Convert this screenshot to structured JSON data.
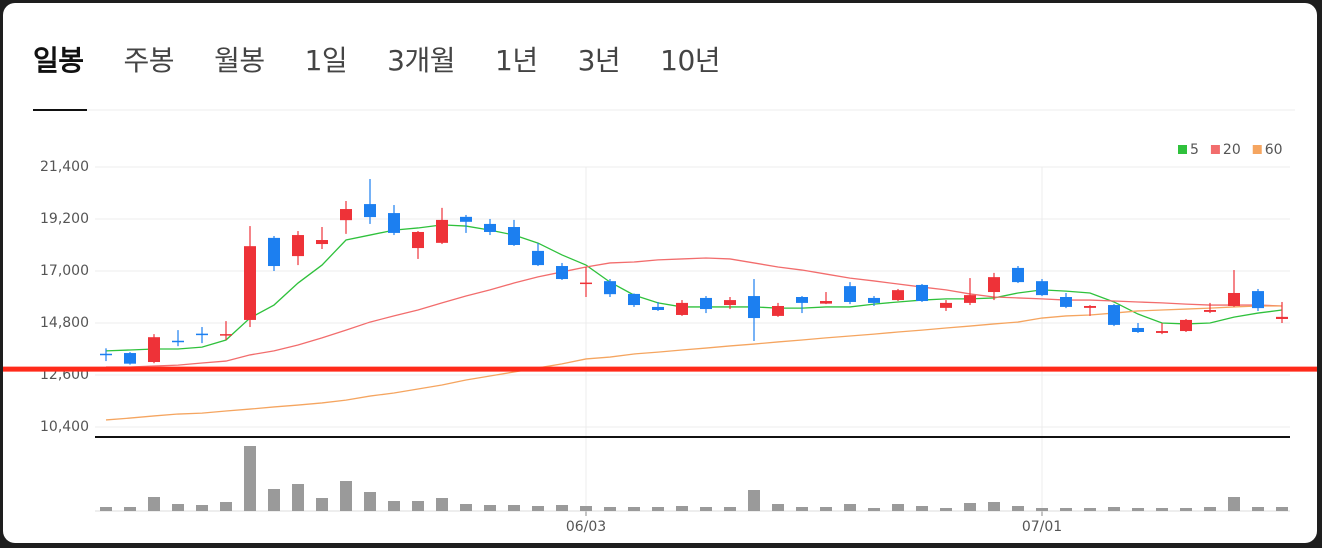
{
  "tabs": [
    "일봉",
    "주봉",
    "월봉",
    "1일",
    "3개월",
    "1년",
    "3년",
    "10년"
  ],
  "chart_data": {
    "type": "candlestick",
    "categories": [
      null,
      null,
      null,
      null,
      null,
      null,
      null,
      null,
      null,
      null,
      null,
      null,
      null,
      null,
      null,
      null,
      null,
      null,
      null,
      null,
      "06/03",
      null,
      null,
      null,
      null,
      null,
      null,
      null,
      null,
      null,
      null,
      null,
      null,
      null,
      null,
      null,
      null,
      null,
      null,
      "07/01",
      null,
      null,
      null,
      null,
      null,
      null,
      null,
      null,
      null,
      null
    ],
    "open": [
      13500,
      13530,
      13150,
      14050,
      14350,
      14280,
      14930,
      18400,
      17630,
      18140,
      19150,
      19830,
      19450,
      17970,
      18190,
      19290,
      18990,
      18860,
      17850,
      17210,
      16470,
      16570,
      16030,
      15480,
      15140,
      15860,
      15560,
      15940,
      15100,
      15900,
      15620,
      16360,
      15860,
      15770,
      16410,
      15440,
      15650,
      16110,
      17130,
      16570,
      15900,
      15440,
      15560,
      14590,
      14380,
      14460,
      15270,
      15520,
      16150,
      14970
    ],
    "high": [
      13730,
      13570,
      14330,
      14500,
      14630,
      14880,
      18900,
      18480,
      18690,
      18860,
      19960,
      20890,
      19790,
      18690,
      19670,
      19370,
      19200,
      19160,
      18180,
      17340,
      17170,
      16660,
      16050,
      15690,
      15770,
      15940,
      15900,
      16660,
      15650,
      15940,
      16110,
      16530,
      15940,
      16240,
      16450,
      15770,
      16700,
      16920,
      17210,
      16660,
      16070,
      15560,
      15600,
      14800,
      14800,
      14970,
      15650,
      17040,
      16240,
      15690
    ],
    "low": [
      13190,
      13040,
      13100,
      13820,
      13950,
      14080,
      14630,
      17000,
      17250,
      17930,
      18570,
      18990,
      18520,
      17510,
      18140,
      18610,
      18520,
      18060,
      17210,
      16620,
      15900,
      15900,
      15480,
      15310,
      15100,
      15220,
      15390,
      14040,
      15060,
      15220,
      15600,
      15600,
      15520,
      15730,
      15690,
      15310,
      15560,
      15770,
      16490,
      15940,
      15430,
      15100,
      14670,
      14380,
      14330,
      14420,
      15220,
      15480,
      15310,
      14800
    ],
    "close": [
      13450,
      13080,
      14200,
      14000,
      14300,
      14330,
      18050,
      17210,
      18520,
      18310,
      19620,
      19280,
      18610,
      18650,
      19160,
      19080,
      18650,
      18100,
      17250,
      16660,
      16510,
      16020,
      15560,
      15350,
      15650,
      15390,
      15770,
      15010,
      15520,
      15650,
      15730,
      15690,
      15650,
      16190,
      15730,
      15650,
      15980,
      16740,
      16530,
      15980,
      15480,
      15520,
      14720,
      14420,
      14460,
      14930,
      15350,
      16070,
      15430,
      15060
    ],
    "up_color": "#ee3238",
    "down_color": "#1c7ff0",
    "series": [
      {
        "name": "5",
        "color": "#2fc13c",
        "values": [
          13620,
          13660,
          13700,
          13700,
          13780,
          14080,
          15010,
          15560,
          16490,
          17250,
          18310,
          18520,
          18730,
          18820,
          18950,
          18900,
          18730,
          18520,
          18180,
          17680,
          17250,
          16530,
          15980,
          15650,
          15480,
          15480,
          15480,
          15480,
          15430,
          15430,
          15480,
          15480,
          15600,
          15690,
          15770,
          15820,
          15820,
          15860,
          16070,
          16200,
          16150,
          16070,
          15690,
          15180,
          14800,
          14760,
          14800,
          15050,
          15220,
          15350
        ]
      },
      {
        "name": "20",
        "color": "#f26d6d",
        "values": [
          12940,
          12940,
          12980,
          13020,
          13110,
          13190,
          13450,
          13620,
          13870,
          14170,
          14500,
          14840,
          15100,
          15350,
          15650,
          15940,
          16200,
          16490,
          16750,
          16960,
          17170,
          17340,
          17380,
          17470,
          17510,
          17550,
          17510,
          17340,
          17170,
          17040,
          16870,
          16700,
          16580,
          16450,
          16320,
          16200,
          16030,
          15900,
          15860,
          15820,
          15770,
          15770,
          15730,
          15690,
          15650,
          15600,
          15560,
          15560,
          15560,
          15520
        ]
      },
      {
        "name": "60",
        "color": "#f5a560",
        "values": [
          10700,
          10780,
          10870,
          10950,
          10990,
          11080,
          11160,
          11250,
          11330,
          11420,
          11540,
          11710,
          11840,
          12010,
          12180,
          12390,
          12560,
          12730,
          12900,
          13070,
          13280,
          13360,
          13490,
          13570,
          13660,
          13740,
          13830,
          13910,
          14000,
          14080,
          14170,
          14250,
          14330,
          14420,
          14500,
          14590,
          14670,
          14760,
          14840,
          15010,
          15100,
          15140,
          15220,
          15310,
          15350,
          15390,
          15430,
          15480,
          15520,
          15520
        ]
      }
    ],
    "legend_legend_colors_note_removed": null,
    "price_line": 12850,
    "price_line_color": "#ff2a1a",
    "ylim": [
      10000,
      21800
    ],
    "yticks": [
      {
        "value": 10400,
        "label": "10,400"
      },
      {
        "value": 12600,
        "label": "12,600"
      },
      {
        "value": 14800,
        "label": "14,800"
      },
      {
        "value": 17000,
        "label": "17,000"
      },
      {
        "value": 19200,
        "label": "19,200"
      },
      {
        "value": 21400,
        "label": "21,400"
      }
    ],
    "grid": true,
    "volume": [
      4,
      4,
      14,
      7,
      6,
      9,
      65,
      22,
      27,
      13,
      30,
      19,
      10,
      10,
      13,
      7,
      6,
      6,
      5,
      6,
      5,
      4,
      4,
      4,
      5,
      4,
      4,
      21,
      7,
      4,
      4,
      7,
      3,
      7,
      5,
      3,
      8,
      9,
      5,
      3,
      3,
      3,
      4,
      3,
      3,
      3,
      4,
      14,
      4,
      4
    ],
    "volume_lim": [
      0,
      70
    ],
    "volume_color": "#9a9a9a"
  }
}
